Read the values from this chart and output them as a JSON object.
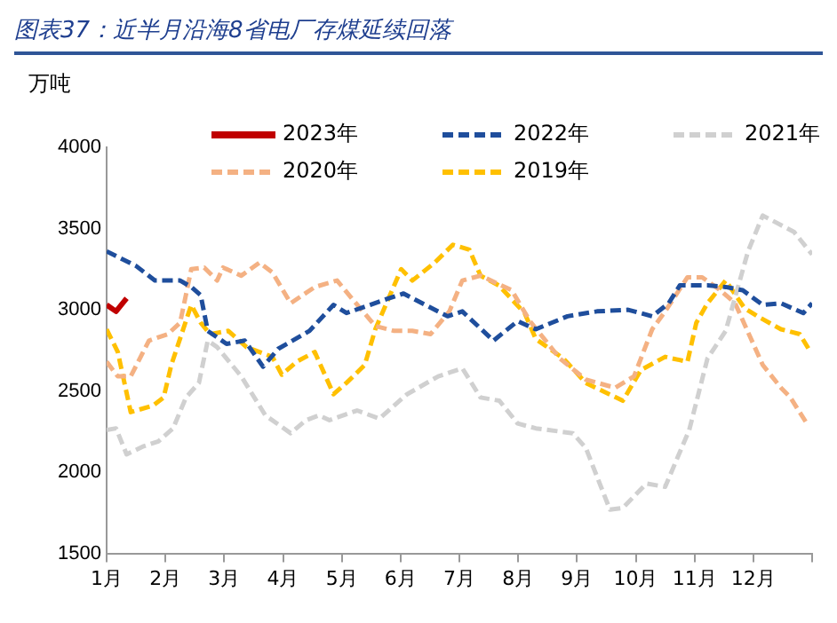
{
  "chart_data": {
    "type": "line",
    "title": "图表37：近半月沿海8省电厂存煤延续回落",
    "ylabel": "万吨",
    "xlim": [
      1,
      13
    ],
    "xticks": [
      {
        "value": 1,
        "label": "1月"
      },
      {
        "value": 2,
        "label": "2月"
      },
      {
        "value": 3,
        "label": "3月"
      },
      {
        "value": 4,
        "label": "4月"
      },
      {
        "value": 5,
        "label": "5月"
      },
      {
        "value": 6,
        "label": "6月"
      },
      {
        "value": 7,
        "label": "7月"
      },
      {
        "value": 8,
        "label": "8月"
      },
      {
        "value": 9,
        "label": "9月"
      },
      {
        "value": 10,
        "label": "10月"
      },
      {
        "value": 11,
        "label": "11月"
      },
      {
        "value": 12,
        "label": "12月"
      },
      {
        "value": 13,
        "label": null
      }
    ],
    "ylim": [
      1500,
      4000
    ],
    "yticks": [
      1500,
      2000,
      2500,
      3000,
      3500,
      4000
    ],
    "grid": false,
    "legend": "top",
    "marker": "none",
    "series": [
      {
        "name": "2023年",
        "color": "#c00000",
        "line_style": "solid",
        "x": [
          1,
          1.16,
          1.34
        ],
        "values": [
          3030,
          2990,
          3070
        ]
      },
      {
        "name": "2022年",
        "color": "#1f4e9c",
        "line_style": "dashed",
        "x": [
          1,
          1.5,
          1.82,
          2.25,
          2.44,
          2.6,
          2.72,
          3.04,
          3.35,
          3.66,
          3.92,
          4.45,
          4.86,
          5.08,
          5.48,
          5.8,
          6.05,
          6.42,
          6.8,
          7.05,
          7.58,
          7.99,
          8.3,
          8.84,
          9.34,
          9.87,
          10.28,
          10.56,
          10.75,
          11.22,
          11.53,
          11.82,
          12.16,
          12.47,
          12.85,
          13
        ],
        "values": [
          3360,
          3270,
          3180,
          3180,
          3140,
          3090,
          2870,
          2790,
          2810,
          2650,
          2760,
          2870,
          3030,
          2980,
          3030,
          3070,
          3100,
          3030,
          2960,
          2990,
          2810,
          2930,
          2880,
          2960,
          2990,
          3000,
          2960,
          3040,
          3150,
          3150,
          3140,
          3120,
          3030,
          3040,
          2980,
          3040
        ]
      },
      {
        "name": "2021年",
        "color": "#d0d0d0",
        "line_style": "dashed",
        "x": [
          1,
          1.16,
          1.34,
          1.63,
          1.88,
          2.13,
          2.35,
          2.57,
          2.72,
          2.88,
          3.29,
          3.7,
          4.13,
          4.39,
          4.61,
          4.79,
          5.26,
          5.64,
          6.11,
          6.64,
          7.05,
          7.36,
          7.68,
          7.99,
          8.3,
          8.93,
          9.15,
          9.56,
          9.78,
          10.18,
          10.5,
          10.91,
          11.22,
          11.53,
          11.91,
          12.16,
          12.69,
          13
        ],
        "values": [
          2260,
          2270,
          2110,
          2160,
          2190,
          2270,
          2460,
          2550,
          2810,
          2770,
          2590,
          2350,
          2240,
          2320,
          2350,
          2320,
          2380,
          2330,
          2480,
          2590,
          2640,
          2460,
          2440,
          2300,
          2270,
          2240,
          2150,
          1770,
          1780,
          1930,
          1910,
          2260,
          2700,
          2870,
          3360,
          3580,
          3480,
          3340
        ]
      },
      {
        "name": "2020年",
        "color": "#f4b183",
        "line_style": "dashed",
        "x": [
          1,
          1.19,
          1.41,
          1.72,
          2.04,
          2.25,
          2.44,
          2.66,
          2.88,
          2.98,
          3.29,
          3.6,
          3.82,
          4.13,
          4.54,
          4.92,
          5.17,
          5.57,
          5.89,
          6.2,
          6.51,
          6.83,
          7.05,
          7.36,
          7.89,
          8.2,
          8.71,
          9.15,
          9.65,
          9.97,
          10.28,
          10.5,
          10.88,
          11.13,
          11.44,
          11.69,
          12.16,
          12.47,
          12.63,
          12.91
        ],
        "values": [
          2680,
          2590,
          2590,
          2810,
          2850,
          2920,
          3250,
          3260,
          3180,
          3260,
          3210,
          3290,
          3230,
          3040,
          3140,
          3180,
          3070,
          2900,
          2870,
          2870,
          2850,
          2990,
          3180,
          3210,
          3120,
          2930,
          2700,
          2570,
          2520,
          2590,
          2880,
          2990,
          3200,
          3200,
          3120,
          3040,
          2660,
          2520,
          2460,
          2300
        ]
      },
      {
        "name": "2019年",
        "color": "#ffc000",
        "line_style": "dashed",
        "x": [
          1,
          1.19,
          1.41,
          1.79,
          1.97,
          2.1,
          2.44,
          2.6,
          2.76,
          3.07,
          3.38,
          3.82,
          3.98,
          4.23,
          4.54,
          4.86,
          5.08,
          5.39,
          5.57,
          6.01,
          6.2,
          6.58,
          6.89,
          7.17,
          7.36,
          7.67,
          8.11,
          8.3,
          8.77,
          9.15,
          9.78,
          10.09,
          10.5,
          10.88,
          11.03,
          11.22,
          11.53,
          11.85,
          12.07,
          12.47,
          12.79,
          12.94
        ],
        "values": [
          2880,
          2740,
          2370,
          2410,
          2460,
          2660,
          3030,
          2920,
          2850,
          2870,
          2770,
          2710,
          2600,
          2680,
          2740,
          2480,
          2550,
          2660,
          2880,
          3250,
          3180,
          3290,
          3400,
          3370,
          3210,
          3150,
          2980,
          2820,
          2700,
          2550,
          2440,
          2630,
          2710,
          2680,
          2920,
          3040,
          3180,
          3010,
          2960,
          2880,
          2850,
          2760
        ]
      }
    ]
  }
}
